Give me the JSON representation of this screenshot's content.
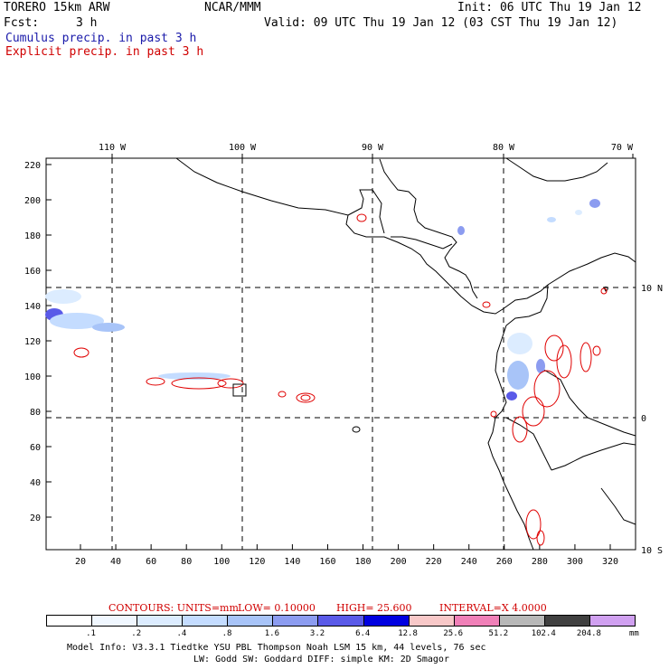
{
  "header": {
    "model": "TORERO  15km ARW",
    "org": "NCAR/MMM",
    "init": "Init: 06 UTC Thu 19 Jan 12",
    "fcst_label": "Fcst:",
    "fcst_value": "3 h",
    "valid": "Valid: 09 UTC Thu 19 Jan 12 (03 CST Thu 19 Jan 12)",
    "cumulus": "Cumulus precip. in past 3 h",
    "explicit": "Explicit precip. in past 3 h"
  },
  "map": {
    "top_lon_labels": [
      "110 W",
      "100 W",
      "90 W",
      "80 W",
      "70 W"
    ],
    "right_lat_labels": [
      "10 N",
      "0",
      "10 S"
    ],
    "left_ticks": [
      "220",
      "200",
      "180",
      "160",
      "140",
      "120",
      "100",
      "80",
      "60",
      "40",
      "20"
    ],
    "bottom_ticks": [
      "20",
      "40",
      "60",
      "80",
      "100",
      "120",
      "140",
      "160",
      "180",
      "200",
      "220",
      "240",
      "260",
      "280",
      "300",
      "320"
    ]
  },
  "contour_info": {
    "contours": "CONTOURS:  UNITS=mm",
    "low": "LOW=  0.10000",
    "high": "HIGH=  25.600",
    "interval": "INTERVAL=X  4.0000"
  },
  "colorbar": {
    "colors": [
      "#ffffff",
      "#f0f7ff",
      "#dcecff",
      "#c4dcff",
      "#a8c4f8",
      "#8c9cf0",
      "#5a5ae8",
      "#0000e0",
      "#f8c8c8",
      "#f080b8",
      "#b8b8b8",
      "#404040",
      "#d0a0f0"
    ],
    "labels": [
      ".1",
      ".2",
      ".4",
      ".8",
      "1.6",
      "3.2",
      "6.4",
      "12.8",
      "25.6",
      "51.2",
      "102.4",
      "204.8"
    ],
    "units": "mm"
  },
  "footer": {
    "line1": "Model Info: V3.3.1    Tiedtke YSU PBL  Thompson     Noah LSM  15 km,    44 levels,   76 sec",
    "line2": "LW: Godd SW: Goddard DIFF: simple KM: 2D Smagor"
  }
}
